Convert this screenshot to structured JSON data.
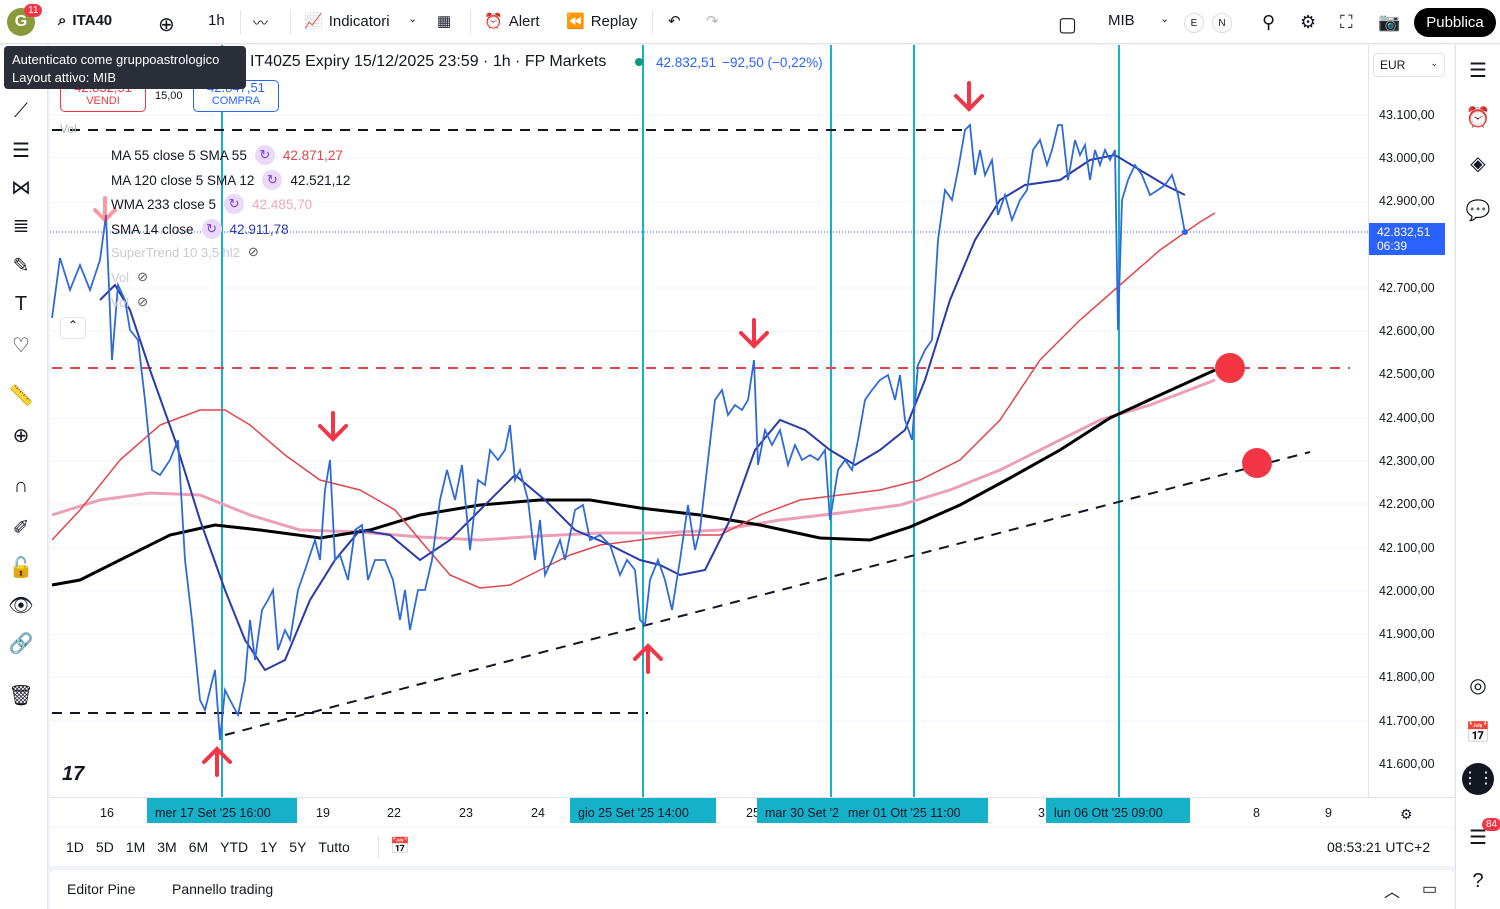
{
  "topbar": {
    "avatar_letter": "G",
    "notif_count": "11",
    "symbol": "ITA40",
    "interval": "1h",
    "indicators": "Indicatori",
    "alert": "Alert",
    "replay": "Replay",
    "layout_name": "MIB",
    "e": "E",
    "n": "N",
    "publish": "Pubblica"
  },
  "tooltip": {
    "line1": "Autenticato come gruppoastrologico",
    "line2": "Layout attivo: MIB"
  },
  "header": {
    "title": "IT40Z5 Expiry 15/12/2025 23:59 · 1h · FP Markets",
    "price": "42.832,51",
    "change": "−92,50 (−0,22%)",
    "sell_price": "42.832,51",
    "sell_label": "VENDI",
    "spread": "15,00",
    "buy_price": "42.847,51",
    "buy_label": "COMPRA"
  },
  "legend": [
    {
      "name": "MA 55 close 5 SMA 55",
      "value": "42.871,27",
      "color": "#e0474c"
    },
    {
      "name": "MA 120 close 5 SMA 12",
      "value": "42.521,12",
      "color": "#131722"
    },
    {
      "name": "WMA 233 close 5",
      "value": "42.485,70",
      "color": "#f0a8c0"
    },
    {
      "name": "SMA 14 close",
      "value": "42.911,78",
      "color": "#2a3aa8"
    }
  ],
  "hidden_indicators": [
    "Vol",
    "SuperTrend 10 3,5 hl2",
    "Vol",
    "Vol"
  ],
  "price_axis": {
    "currency": "EUR",
    "labels": [
      "43.100,00",
      "43.000,00",
      "42.900,00",
      "42.700,00",
      "42.600,00",
      "42.500,00",
      "42.400,00",
      "42.300,00",
      "42.200,00",
      "42.100,00",
      "42.000,00",
      "41.900,00",
      "41.800,00",
      "41.700,00",
      "41.600,00"
    ],
    "current_price": "42.832,51",
    "countdown": "06:39"
  },
  "time_axis": {
    "labels": [
      "16",
      "19",
      "22",
      "23",
      "24",
      "25",
      "3",
      "8",
      "9"
    ],
    "highlighted": [
      "mer 17 Set '25  16:00",
      "gio 25 Set '25  14:00",
      "mar 30 Set '2",
      "mer 01 Ott '25  11:00",
      "lun 06 Ott '25  09:00"
    ]
  },
  "ranges": [
    "1D",
    "5D",
    "1M",
    "3M",
    "6M",
    "YTD",
    "1Y",
    "5Y",
    "Tutto"
  ],
  "clock": "08:53:21 UTC+2",
  "bottom_tabs": [
    "Editor Pine",
    "Pannello trading"
  ],
  "right_badge": "84",
  "colors": {
    "accent": "#2962ff",
    "cyan": "#17b0c9",
    "red": "#f23645"
  }
}
